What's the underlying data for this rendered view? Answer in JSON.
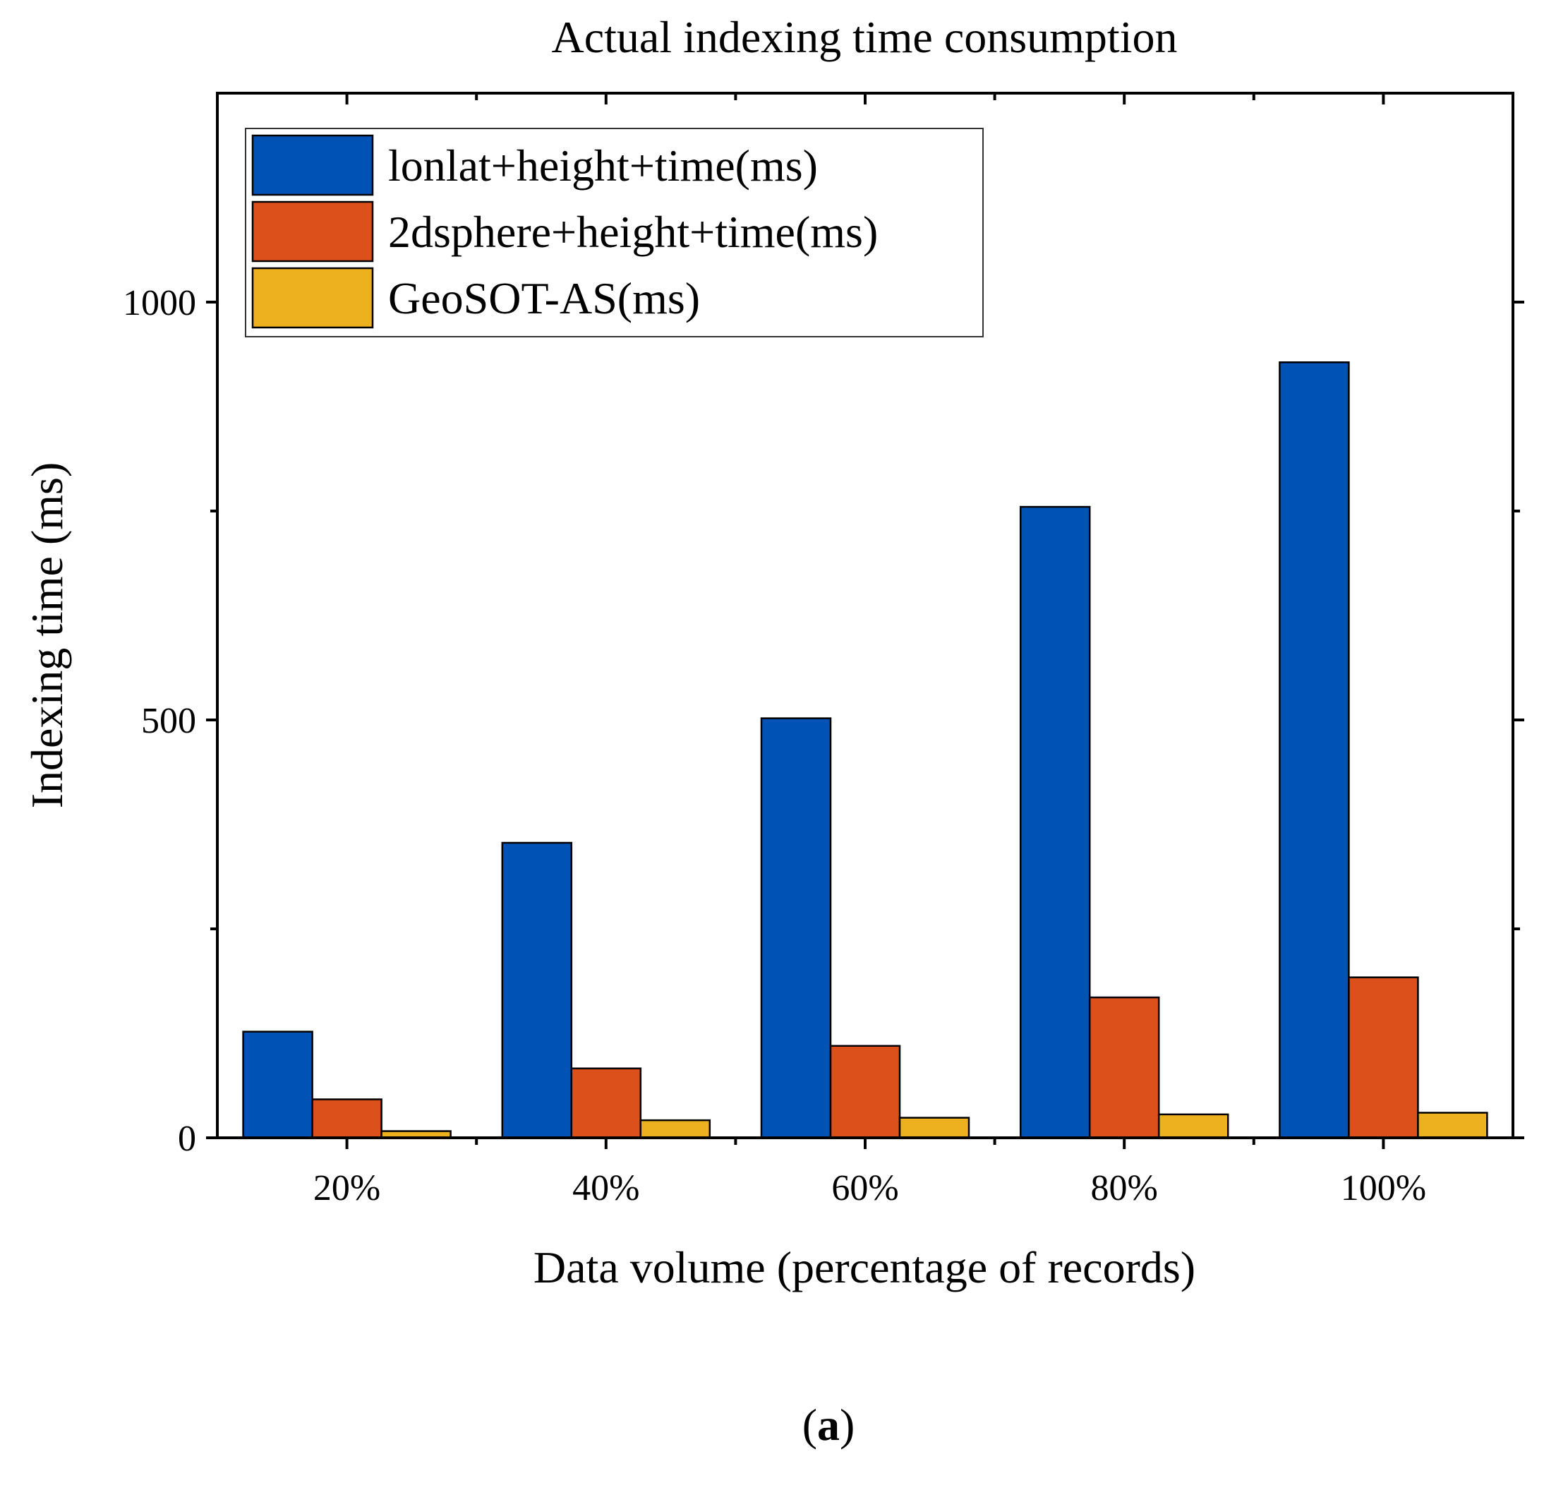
{
  "chart_data": {
    "type": "bar",
    "title": "Actual indexing time consumption",
    "xlabel": "Data volume (percentage of records)",
    "ylabel": "Indexing time (ms)",
    "categories": [
      "20%",
      "40%",
      "60%",
      "80%",
      "100%"
    ],
    "ylim": [
      0,
      1250
    ],
    "yticks": [
      0,
      500,
      1000
    ],
    "yticks_minor": [
      250,
      750
    ],
    "legend_position": "top-left",
    "series": [
      {
        "name": "lonlat+height+time(ms)",
        "color": "#0052B4",
        "values": [
          127,
          353,
          502,
          755,
          928
        ]
      },
      {
        "name": "2dsphere+height+time(ms)",
        "color": "#DC501C",
        "values": [
          46,
          83,
          110,
          168,
          192
        ]
      },
      {
        "name": "GeoSOT-AS(ms)",
        "color": "#EDB120",
        "values": [
          8,
          21,
          24,
          28,
          30
        ]
      }
    ]
  },
  "caption": {
    "open": "(",
    "letter": "a",
    "close": ")"
  }
}
